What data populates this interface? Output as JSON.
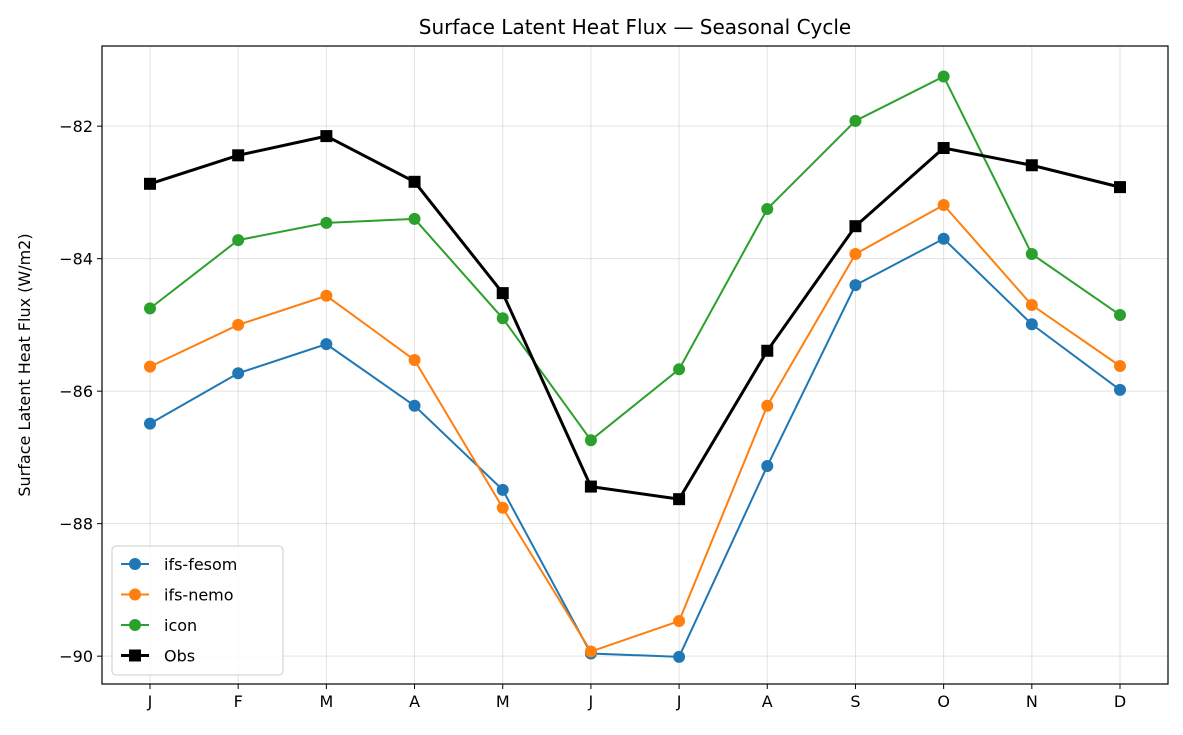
{
  "chart_data": {
    "type": "line",
    "title": "Surface Latent Heat Flux — Seasonal Cycle",
    "xlabel": "",
    "ylabel": "Surface Latent Heat Flux (W/m2)",
    "categories": [
      "J",
      "F",
      "M",
      "A",
      "M",
      "J",
      "J",
      "A",
      "S",
      "O",
      "N",
      "D"
    ],
    "ylim": [
      -90.42,
      -80.79
    ],
    "yticks": [
      -82,
      -84,
      -86,
      -88,
      -90
    ],
    "ytick_labels": [
      "−82",
      "−84",
      "−86",
      "−88",
      "−90"
    ],
    "grid": true,
    "legend_position": "lower-left",
    "series": [
      {
        "name": "ifs-fesom",
        "color": "#1f77b4",
        "marker": "circle",
        "values": [
          -86.49,
          -85.73,
          -85.29,
          -86.22,
          -87.49,
          -89.96,
          -90.01,
          -87.13,
          -84.4,
          -83.7,
          -84.99,
          -85.98
        ]
      },
      {
        "name": "ifs-nemo",
        "color": "#ff7f0e",
        "marker": "circle",
        "values": [
          -85.63,
          -85.0,
          -84.56,
          -85.53,
          -87.76,
          -89.93,
          -89.47,
          -86.22,
          -83.93,
          -83.19,
          -84.7,
          -85.62
        ]
      },
      {
        "name": "icon",
        "color": "#2ca02c",
        "marker": "circle",
        "values": [
          -84.75,
          -83.72,
          -83.46,
          -83.4,
          -84.9,
          -86.74,
          -85.67,
          -83.25,
          -81.92,
          -81.25,
          -83.93,
          -84.85
        ]
      },
      {
        "name": "Obs",
        "color": "#000000",
        "marker": "square",
        "values": [
          -82.87,
          -82.44,
          -82.15,
          -82.84,
          -84.52,
          -87.44,
          -87.63,
          -85.39,
          -83.51,
          -82.33,
          -82.59,
          -82.92
        ]
      }
    ]
  }
}
